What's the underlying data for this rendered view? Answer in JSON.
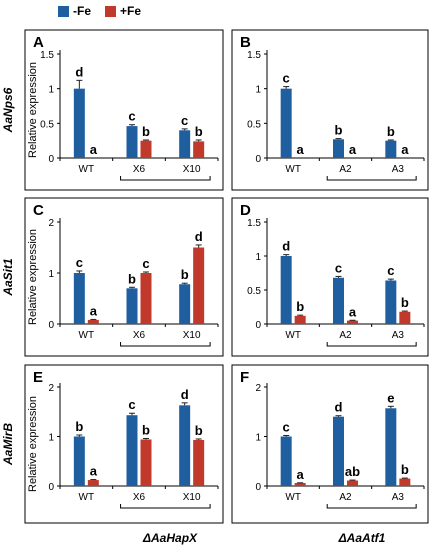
{
  "legend": [
    {
      "name": "-Fe",
      "color": "#1f5fa0"
    },
    {
      "name": "+Fe",
      "color": "#c0392b"
    }
  ],
  "row_labels": [
    "AaNps6",
    "AaSit1",
    "AaMirB"
  ],
  "ylabel": "Relative expression",
  "group_labels": [
    "ΔAaHapX",
    "ΔAaAtf1"
  ],
  "chart_data": [
    {
      "panel": "A",
      "type": "bar",
      "categories": [
        "WT",
        "X6",
        "X10"
      ],
      "ylim": [
        0,
        1.5
      ],
      "yticks": [
        "0",
        "0.5",
        "1",
        "1.5"
      ],
      "series": [
        {
          "name": "-Fe",
          "values": [
            1.0,
            0.46,
            0.4
          ],
          "errors": [
            0.12,
            0.02,
            0.02
          ],
          "letters": [
            "d",
            "c",
            "c"
          ]
        },
        {
          "name": "+Fe",
          "values": [
            0.0,
            0.25,
            0.24
          ],
          "errors": [
            0.0,
            0.01,
            0.02
          ],
          "letters": [
            "a",
            "b",
            "b"
          ]
        }
      ]
    },
    {
      "panel": "B",
      "type": "bar",
      "categories": [
        "WT",
        "A2",
        "A3"
      ],
      "ylim": [
        0,
        1.5
      ],
      "yticks": [
        "0",
        "0.5",
        "1",
        "1.5"
      ],
      "series": [
        {
          "name": "-Fe",
          "values": [
            1.0,
            0.27,
            0.25
          ],
          "errors": [
            0.03,
            0.01,
            0.01
          ],
          "letters": [
            "c",
            "b",
            "b"
          ]
        },
        {
          "name": "+Fe",
          "values": [
            0.0,
            0.0,
            0.0
          ],
          "errors": [
            0.0,
            0.0,
            0.0
          ],
          "letters": [
            "a",
            "a",
            "a"
          ]
        }
      ]
    },
    {
      "panel": "C",
      "type": "bar",
      "categories": [
        "WT",
        "X6",
        "X10"
      ],
      "ylim": [
        0,
        2
      ],
      "yticks": [
        "0",
        "1",
        "2"
      ],
      "series": [
        {
          "name": "-Fe",
          "values": [
            1.0,
            0.7,
            0.78
          ],
          "errors": [
            0.04,
            0.02,
            0.02
          ],
          "letters": [
            "c",
            "b",
            "b"
          ]
        },
        {
          "name": "+Fe",
          "values": [
            0.08,
            1.0,
            1.5
          ],
          "errors": [
            0.01,
            0.02,
            0.05
          ],
          "letters": [
            "a",
            "c",
            "d"
          ]
        }
      ]
    },
    {
      "panel": "D",
      "type": "bar",
      "categories": [
        "WT",
        "A2",
        "A3"
      ],
      "ylim": [
        0,
        1.5
      ],
      "yticks": [
        "0",
        "0.5",
        "1",
        "1.5"
      ],
      "series": [
        {
          "name": "-Fe",
          "values": [
            1.0,
            0.68,
            0.64
          ],
          "errors": [
            0.02,
            0.02,
            0.02
          ],
          "letters": [
            "d",
            "c",
            "c"
          ]
        },
        {
          "name": "+Fe",
          "values": [
            0.12,
            0.05,
            0.18
          ],
          "errors": [
            0.01,
            0.005,
            0.01
          ],
          "letters": [
            "b",
            "a",
            "b"
          ]
        }
      ]
    },
    {
      "panel": "E",
      "type": "bar",
      "categories": [
        "WT",
        "X6",
        "X10"
      ],
      "ylim": [
        0,
        2
      ],
      "yticks": [
        "0",
        "1",
        "2"
      ],
      "series": [
        {
          "name": "-Fe",
          "values": [
            1.0,
            1.43,
            1.63
          ],
          "errors": [
            0.03,
            0.04,
            0.05
          ],
          "letters": [
            "b",
            "c",
            "d"
          ]
        },
        {
          "name": "+Fe",
          "values": [
            0.12,
            0.94,
            0.93
          ],
          "errors": [
            0.01,
            0.02,
            0.02
          ],
          "letters": [
            "a",
            "b",
            "b"
          ]
        }
      ]
    },
    {
      "panel": "F",
      "type": "bar",
      "categories": [
        "WT",
        "A2",
        "A3"
      ],
      "ylim": [
        0,
        2
      ],
      "yticks": [
        "0",
        "1",
        "2"
      ],
      "series": [
        {
          "name": "-Fe",
          "values": [
            1.0,
            1.4,
            1.57
          ],
          "errors": [
            0.02,
            0.02,
            0.04
          ],
          "letters": [
            "c",
            "d",
            "e"
          ]
        },
        {
          "name": "+Fe",
          "values": [
            0.06,
            0.11,
            0.15
          ],
          "errors": [
            0.005,
            0.01,
            0.01
          ],
          "letters": [
            "a",
            "ab",
            "b"
          ]
        }
      ]
    }
  ]
}
